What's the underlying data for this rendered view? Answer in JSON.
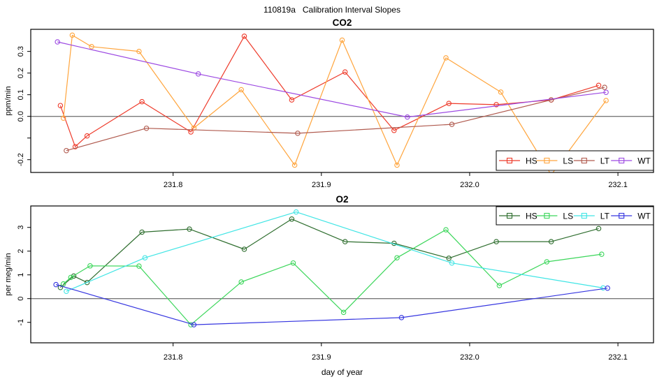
{
  "title": "110819a   Calibration Interval Slopes",
  "x_axis": {
    "label": "day of year",
    "lim": [
      231.704,
      232.124
    ],
    "ticks": [
      231.8,
      231.9,
      232.0,
      232.1
    ]
  },
  "colors": {
    "axis": "#000000",
    "zero_line": "#7a7a7a",
    "background": "#ffffff"
  },
  "chart_data": [
    {
      "type": "line",
      "title": "CO2",
      "xlabel": "",
      "ylabel": "ppm/min",
      "ylim": [
        -0.259,
        0.402
      ],
      "grid": false,
      "zero_line": 0,
      "legend_position": "bottom-right",
      "yticks": [
        {
          "v": 0.3,
          "label": "0.3"
        },
        {
          "v": 0.2,
          "label": "0.2"
        },
        {
          "v": 0.1,
          "label": "0.1"
        },
        {
          "v": 0.0,
          "label": "0.0"
        },
        {
          "v": -0.1,
          "label": ""
        },
        {
          "v": -0.2,
          "label": "-0.2"
        }
      ],
      "series": [
        {
          "name": "HS",
          "color": "#ee3a2a",
          "points": [
            [
              231.724,
              0.05
            ],
            [
              231.734,
              -0.14
            ],
            [
              231.742,
              -0.09
            ],
            [
              231.779,
              0.068
            ],
            [
              231.812,
              -0.072
            ],
            [
              231.848,
              0.37
            ],
            [
              231.88,
              0.076
            ],
            [
              231.916,
              0.205
            ],
            [
              231.949,
              -0.065
            ],
            [
              231.986,
              0.06
            ],
            [
              232.018,
              0.054
            ],
            [
              232.055,
              0.076
            ],
            [
              232.087,
              0.143
            ]
          ]
        },
        {
          "name": "LS",
          "color": "#ffa53d",
          "points": [
            [
              231.726,
              -0.008
            ],
            [
              231.732,
              0.375
            ],
            [
              231.745,
              0.322
            ],
            [
              231.777,
              0.3
            ],
            [
              231.814,
              -0.054
            ],
            [
              231.846,
              0.123
            ],
            [
              231.882,
              -0.225
            ],
            [
              231.914,
              0.352
            ],
            [
              231.951,
              -0.225
            ],
            [
              231.984,
              0.27
            ],
            [
              232.021,
              0.112
            ],
            [
              232.055,
              -0.27
            ],
            [
              232.092,
              0.073
            ]
          ]
        },
        {
          "name": "LT",
          "color": "#b05a4e",
          "points": [
            [
              231.728,
              -0.158
            ],
            [
              231.782,
              -0.055
            ],
            [
              231.884,
              -0.078
            ],
            [
              231.988,
              -0.037
            ],
            [
              232.055,
              0.076
            ],
            [
              232.091,
              0.134
            ]
          ]
        },
        {
          "name": "WT",
          "color": "#9c49e2",
          "points": [
            [
              231.722,
              0.344
            ],
            [
              231.817,
              0.196
            ],
            [
              231.958,
              -0.003
            ],
            [
              232.092,
              0.111
            ]
          ]
        }
      ]
    },
    {
      "type": "line",
      "title": "O2",
      "xlabel": "day of year",
      "ylabel": "per meg/min",
      "ylim": [
        -1.862,
        3.903
      ],
      "grid": false,
      "zero_line": 0,
      "legend_position": "top-right",
      "yticks": [
        {
          "v": 3,
          "label": "3"
        },
        {
          "v": 2,
          "label": "2"
        },
        {
          "v": 1,
          "label": "1"
        },
        {
          "v": 0,
          "label": "0"
        },
        {
          "v": -1,
          "label": "-1"
        }
      ],
      "series": [
        {
          "name": "HS",
          "color": "#2f6e2f",
          "points": [
            [
              231.724,
              0.47
            ],
            [
              231.733,
              0.95
            ],
            [
              231.742,
              0.68
            ],
            [
              231.779,
              2.8
            ],
            [
              231.811,
              2.93
            ],
            [
              231.848,
              2.08
            ],
            [
              231.88,
              3.35
            ],
            [
              231.916,
              2.4
            ],
            [
              231.949,
              2.33
            ],
            [
              231.986,
              1.7
            ],
            [
              232.018,
              2.4
            ],
            [
              232.055,
              2.4
            ],
            [
              232.087,
              2.95
            ]
          ]
        },
        {
          "name": "LS",
          "color": "#3bd65a",
          "points": [
            [
              231.726,
              0.62
            ],
            [
              231.731,
              0.89
            ],
            [
              231.744,
              1.38
            ],
            [
              231.777,
              1.37
            ],
            [
              231.812,
              -1.1
            ],
            [
              231.846,
              0.7
            ],
            [
              231.881,
              1.5
            ],
            [
              231.915,
              -0.58
            ],
            [
              231.951,
              1.72
            ],
            [
              231.984,
              2.9
            ],
            [
              232.02,
              0.55
            ],
            [
              232.052,
              1.55
            ],
            [
              232.089,
              1.87
            ]
          ]
        },
        {
          "name": "LT",
          "color": "#40e5e5",
          "points": [
            [
              231.728,
              0.31
            ],
            [
              231.781,
              1.72
            ],
            [
              231.883,
              3.65
            ],
            [
              231.988,
              1.5
            ],
            [
              232.09,
              0.45
            ]
          ]
        },
        {
          "name": "WT",
          "color": "#3636e0",
          "points": [
            [
              231.721,
              0.59
            ],
            [
              231.814,
              -1.1
            ],
            [
              231.954,
              -0.8
            ],
            [
              232.093,
              0.44
            ]
          ]
        }
      ]
    }
  ]
}
